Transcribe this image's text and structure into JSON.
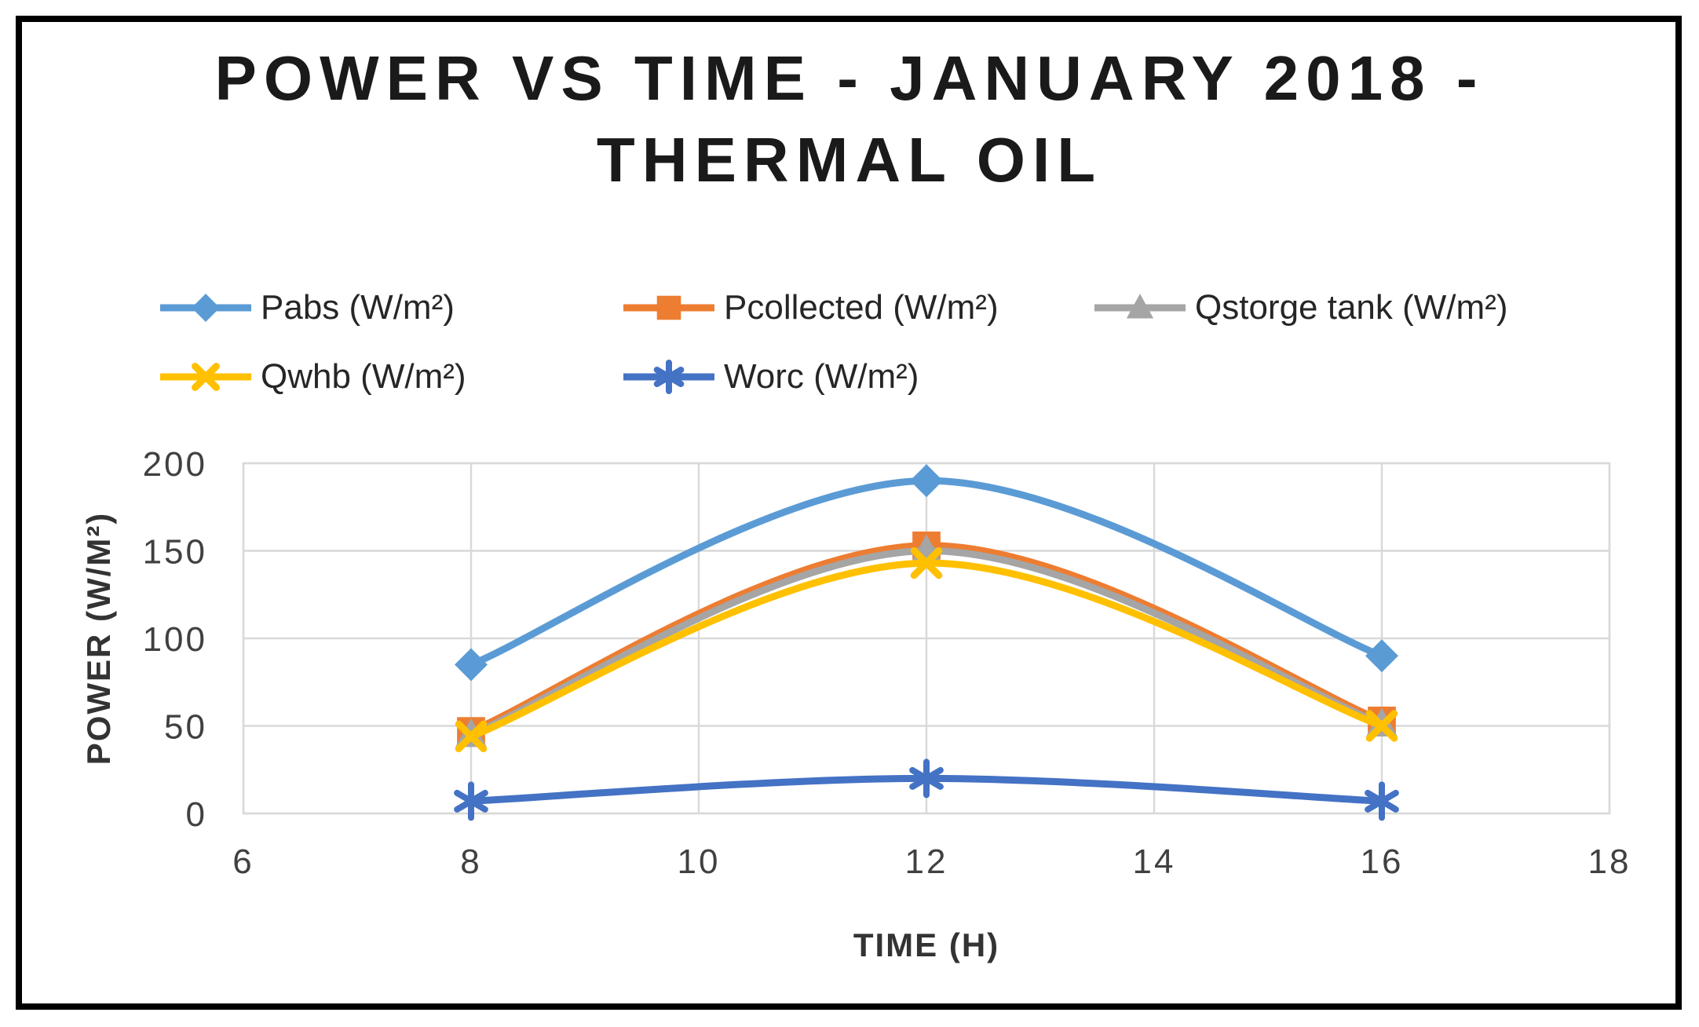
{
  "chart_data": {
    "type": "line",
    "title": "POWER VS TIME - JANUARY 2018 - THERMAL OIL",
    "title_lines": [
      "POWER VS TIME - JANUARY 2018 -",
      "THERMAL OIL"
    ],
    "xlabel": "TIME (H)",
    "ylabel": "POWER (W/M²)",
    "x": [
      8,
      12,
      16
    ],
    "series": [
      {
        "name": "Pabs (W/m²)",
        "color": "#5B9BD5",
        "marker": "diamond",
        "values": [
          85,
          190,
          90
        ]
      },
      {
        "name": "Pcollected (W/m²)",
        "color": "#ED7D31",
        "marker": "square",
        "values": [
          47,
          153,
          53
        ]
      },
      {
        "name": "Qstorge tank (W/m²)",
        "color": "#A5A5A5",
        "marker": "triangle",
        "values": [
          45,
          150,
          51
        ]
      },
      {
        "name": "Qwhb (W/m²)",
        "color": "#FFC000",
        "marker": "x",
        "values": [
          44,
          143,
          50
        ]
      },
      {
        "name": "Worc (W/m²)",
        "color": "#4472C4",
        "marker": "asterisk",
        "values": [
          7,
          20,
          7
        ]
      }
    ],
    "xlim": [
      6,
      18
    ],
    "xticks": [
      6,
      8,
      10,
      12,
      14,
      16,
      18
    ],
    "ylim": [
      0,
      200
    ],
    "yticks": [
      0,
      50,
      100,
      150,
      200
    ],
    "grid": true,
    "grid_color": "#D9D9D9",
    "legend_position": "top-left, two rows",
    "smooth": true
  }
}
